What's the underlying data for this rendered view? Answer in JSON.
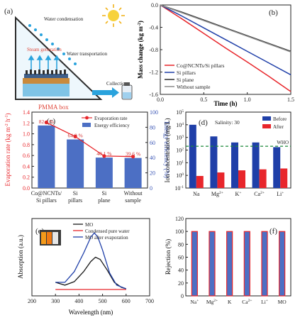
{
  "chart_data": [
    {
      "panel": "(a)",
      "type": "diagram",
      "labels": [
        "Water condensation",
        "Steam generation",
        "Water transportation",
        "Collection",
        "PMMA box"
      ],
      "colors": {
        "steam": "#e0483b",
        "box": "#2c2c2c",
        "water": "#2aa3dd",
        "sun": "#f7d23c",
        "base": "#3e5f8a"
      }
    },
    {
      "panel": "(b)",
      "type": "line",
      "xlabel": "Time (h)",
      "ylabel": "Mass change (kg m",
      "ylabel_sup": "-2",
      "ylabel_end": ")",
      "xlim": [
        0,
        1.5
      ],
      "ylim": [
        -1.6,
        0.0
      ],
      "xticks": [
        "0.0",
        "0.5",
        "1.0",
        "1.5"
      ],
      "yticks": [
        "0.0",
        "-0.4",
        "-0.8",
        "-1.2",
        "-1.6"
      ],
      "series": [
        {
          "name": "Co@NCNTs/Si pillars",
          "color": "#e8262b",
          "x": [
            0,
            0.25,
            0.5,
            0.75,
            1.0,
            1.25,
            1.5
          ],
          "y": [
            0.0,
            -0.25,
            -0.51,
            -0.77,
            -1.02,
            -1.28,
            -1.55
          ]
        },
        {
          "name": "Si pillars",
          "color": "#1f3fa8",
          "x": [
            0,
            0.25,
            0.5,
            0.75,
            1.0,
            1.25,
            1.5
          ],
          "y": [
            0.0,
            -0.2,
            -0.41,
            -0.62,
            -0.83,
            -1.04,
            -1.25
          ]
        },
        {
          "name": "Si plane",
          "color": "#2d2d2d",
          "x": [
            0,
            0.25,
            0.5,
            0.75,
            1.0,
            1.25,
            1.5
          ],
          "y": [
            0.0,
            -0.13,
            -0.27,
            -0.41,
            -0.55,
            -0.69,
            -0.83
          ]
        },
        {
          "name": "Without sample",
          "color": "#8a8a8a",
          "x": [
            0,
            0.25,
            0.5,
            0.75,
            1.0,
            1.25,
            1.5
          ],
          "y": [
            0.0,
            -0.14,
            -0.28,
            -0.42,
            -0.56,
            -0.7,
            -0.84
          ]
        }
      ],
      "legend_position": "bottom-left"
    },
    {
      "panel": "(c)",
      "type": "bar",
      "categories": [
        "Co@NCNTs/Si pillars",
        "Si pillars",
        "Si plane",
        "Without sample"
      ],
      "category_lines": [
        [
          "Co@NCNTs/",
          "Si pillars"
        ],
        [
          "Si",
          "pillars"
        ],
        [
          "Si",
          "plane"
        ],
        [
          "Without",
          "sample"
        ]
      ],
      "bar_label": "Energy efficiency",
      "line_label": "Evaporation rate",
      "efficiency_values": [
        82.4,
        64.0,
        40.1,
        39.6
      ],
      "efficiency_labels": [
        "82.4 %",
        "64.0 %",
        "40.1 %",
        "39.6 %"
      ],
      "evaporation_rate": [
        1.21,
        0.95,
        0.59,
        0.58
      ],
      "ylabel_left": "Evaporation rate (kg m",
      "ylabel_left_sup": "-2",
      "ylabel_left_mid": " h",
      "ylabel_left_sup2": "-1",
      "ylabel_left_end": ")",
      "ylabel_right": "Energy efficiency (%)",
      "ylim_left": [
        0.0,
        1.4
      ],
      "ylim_right": [
        0,
        100
      ],
      "yticks_left": [
        "0.0",
        "0.2",
        "0.4",
        "0.6",
        "0.8",
        "1.0",
        "1.2",
        "1.4"
      ],
      "yticks_right": [
        "0",
        "20",
        "40",
        "60",
        "80",
        "100"
      ],
      "bar_color": "#4c6fc4",
      "line_color": "#e8262b",
      "legend_position": "top-right"
    },
    {
      "panel": "(d)",
      "type": "bar",
      "title": "Salinity: 30",
      "categories": [
        "Na",
        "Mg",
        "K",
        "Ca",
        "Li"
      ],
      "category_sups": [
        "",
        "2+",
        "+",
        "2+",
        "+"
      ],
      "series": [
        {
          "name": "Before",
          "color": "#1f3fa8",
          "values": [
            10000,
            1200,
            400,
            400,
            170
          ]
        },
        {
          "name": "After",
          "color": "#e8262b",
          "values": [
            0.9,
            1.7,
            2.5,
            3.0,
            3.5
          ]
        }
      ],
      "reference_line": {
        "label": "WHO",
        "value": 200,
        "color": "#1b8a3a"
      },
      "ylabel": "Ion concentration (mg/L)",
      "yscale": "log",
      "ylim": [
        0.1,
        100000
      ],
      "ytick_values": [
        0.1,
        1,
        10,
        100,
        1000,
        10000,
        100000
      ],
      "ytick_base": "10",
      "ytick_exps": [
        "-1",
        "0",
        "1",
        "2",
        "3",
        "4",
        "5"
      ],
      "legend_position": "top-right"
    },
    {
      "panel": "(e)",
      "type": "line",
      "xlabel": "Wavelength (nm)",
      "ylabel": "Absorption (a.u.)",
      "xlim": [
        200,
        700
      ],
      "xticks": [
        "200",
        "300",
        "400",
        "500",
        "600",
        "700"
      ],
      "ylim": [
        0,
        5
      ],
      "series": [
        {
          "name": "MO",
          "color": "#1a1a1a",
          "x": [
            300,
            340,
            380,
            420,
            450,
            470,
            490,
            520,
            550,
            580,
            600
          ],
          "y": [
            0.55,
            0.35,
            0.6,
            1.3,
            2.0,
            2.3,
            2.15,
            1.4,
            0.55,
            0.2,
            0.1
          ]
        },
        {
          "name": "Condensed pure water",
          "color": "#e8262b",
          "x": [
            300,
            600
          ],
          "y": [
            0.05,
            0.05
          ]
        },
        {
          "name": "MO after evaporation",
          "color": "#1f3fa8",
          "x": [
            300,
            340,
            380,
            420,
            450,
            465,
            480,
            500,
            530,
            560,
            600
          ],
          "y": [
            0.55,
            0.55,
            1.3,
            2.6,
            3.7,
            4.0,
            3.7,
            2.8,
            1.2,
            0.35,
            0.1
          ]
        }
      ],
      "inset": "photo of sample vials",
      "legend_position": "top-right"
    },
    {
      "panel": "(f)",
      "type": "bar",
      "categories": [
        "Na",
        "Mg",
        "K",
        "Ca",
        "Li",
        "MO"
      ],
      "category_sups": [
        "+",
        "2+",
        "",
        "2+",
        "+",
        ""
      ],
      "values": [
        99.9,
        99.9,
        99.9,
        99.9,
        99.9,
        99.9
      ],
      "ylabel": "Rejection (%)",
      "ylim": [
        0,
        120
      ],
      "yticks": [
        "0",
        "20",
        "40",
        "60",
        "80",
        "100",
        "120"
      ],
      "bar_fill": "#4c6fc4",
      "bar_edge": "#e8262b"
    }
  ]
}
